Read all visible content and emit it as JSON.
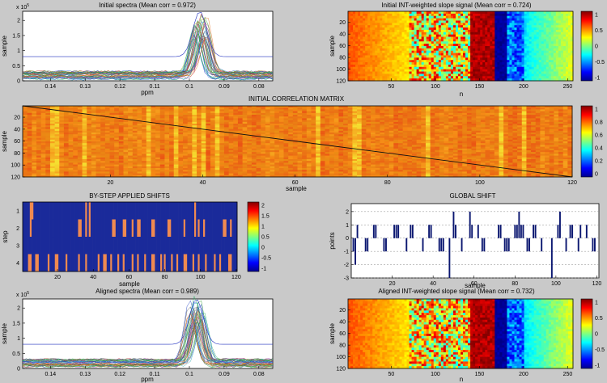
{
  "colorbar_labels": {
    "initial_slope": [
      "1",
      "0.5",
      "0",
      "-0.5",
      "-1"
    ],
    "correlation": [
      "1",
      "0.8",
      "0.6",
      "0.4",
      "0.2",
      "0"
    ],
    "shifts": [
      "2",
      "1.5",
      "1",
      "0.5",
      "0",
      "-0.5",
      "-1"
    ],
    "aligned_slope": [
      "1",
      "0.5",
      "0",
      "-0.5",
      "-1"
    ]
  },
  "chart_data": [
    {
      "id": "initial_spectra",
      "type": "line",
      "title": "Initial spectra (Mean corr = 0.972)",
      "xlabel": "ppm",
      "ylabel": "sample",
      "exponent_label": "x 10",
      "exponent_power": "5",
      "x_reversed": true,
      "xlim": [
        0.076,
        0.148
      ],
      "ylim": [
        0,
        230000
      ],
      "x_ticks": [
        "0.14",
        "0.13",
        "0.12",
        "0.11",
        "0.1",
        "0.09",
        "0.08"
      ],
      "y_ticks": [
        "0",
        "0.5",
        "1",
        "1.5",
        "2"
      ],
      "peak_center_ppm": 0.097,
      "peak_height": 200000,
      "baseline": 15000,
      "series_count": 120
    },
    {
      "id": "initial_slope",
      "type": "heatmap",
      "title": "Initial INT-weighted slope signal (Mean corr = 0.724)",
      "xlabel": "n",
      "ylabel": "sample",
      "xlim": [
        1,
        256
      ],
      "ylim": [
        1,
        120
      ],
      "x_ticks": [
        "50",
        "100",
        "150",
        "200",
        "250"
      ],
      "y_ticks": [
        "20",
        "40",
        "60",
        "80",
        "100",
        "120"
      ],
      "clim": [
        -1,
        1
      ]
    },
    {
      "id": "correlation_matrix",
      "type": "heatmap",
      "title": "INITIAL CORRELATION MATRIX",
      "xlabel": "sample",
      "ylabel": "sample",
      "xlim": [
        1,
        120
      ],
      "ylim": [
        1,
        120
      ],
      "x_ticks": [
        "20",
        "40",
        "60",
        "80",
        "100",
        "120"
      ],
      "y_ticks": [
        "20",
        "40",
        "60",
        "80",
        "100",
        "120"
      ],
      "clim": [
        0,
        1
      ]
    },
    {
      "id": "step_shifts",
      "type": "heatmap",
      "title": "BY-STEP APPLIED SHIFTS",
      "xlabel": "sample",
      "ylabel": "step",
      "xlim": [
        1,
        120
      ],
      "steps": 4,
      "x_ticks": [
        "20",
        "40",
        "60",
        "80",
        "100",
        "120"
      ],
      "y_ticks": [
        "1",
        "2",
        "3",
        "4"
      ],
      "clim": [
        -1,
        2
      ],
      "values": [
        [
          0,
          0,
          0,
          0,
          1,
          1,
          0,
          0,
          0,
          0,
          0,
          0,
          0,
          0,
          0,
          0,
          0,
          0,
          0,
          0,
          0,
          0,
          0,
          0,
          0,
          0,
          0,
          0,
          0,
          0,
          0,
          0,
          0,
          0,
          0,
          1,
          0,
          1,
          0,
          0,
          0,
          0,
          0,
          0,
          0,
          0,
          0,
          0,
          0,
          0,
          0,
          0,
          0,
          0,
          0,
          0,
          0,
          0,
          0,
          0,
          0,
          0,
          0,
          0,
          0,
          0,
          0,
          0,
          0,
          0,
          0,
          0,
          0,
          0,
          0,
          0,
          0,
          0,
          0,
          0,
          0,
          0,
          0,
          0,
          0,
          0,
          0,
          0,
          0,
          0,
          0,
          0,
          0,
          0,
          0,
          0,
          1,
          0,
          0,
          0,
          0,
          0,
          0,
          0,
          0,
          0,
          0,
          0,
          0,
          0,
          0,
          0,
          0,
          0,
          0,
          0,
          0,
          0,
          0,
          0
        ],
        [
          0,
          0,
          0,
          0,
          1,
          0,
          0,
          0,
          0,
          0,
          0,
          0,
          0,
          0,
          0,
          0,
          0,
          0,
          0,
          0,
          0,
          0,
          0,
          0,
          0,
          0,
          0,
          0,
          0,
          0,
          0,
          1,
          1,
          0,
          0,
          1,
          0,
          1,
          0,
          0,
          0,
          0,
          0,
          0,
          0,
          0,
          0,
          0,
          0,
          0,
          1,
          1,
          0,
          0,
          0,
          0,
          1,
          1,
          0,
          0,
          0,
          1,
          0,
          0,
          1,
          1,
          0,
          0,
          0,
          0,
          0,
          0,
          1,
          1,
          0,
          0,
          0,
          0,
          0,
          0,
          0,
          1,
          1,
          0,
          0,
          0,
          0,
          0,
          0,
          0,
          1,
          0,
          0,
          0,
          0,
          0,
          1,
          0,
          1,
          0,
          0,
          1,
          0,
          0,
          0,
          0,
          0,
          0,
          0,
          0,
          0,
          0,
          1,
          1,
          0,
          0,
          1,
          0,
          0,
          0
        ],
        [
          0,
          0,
          0,
          0,
          0,
          0,
          0,
          0,
          0,
          0,
          0,
          0,
          0,
          0,
          0,
          0,
          0,
          0,
          0,
          0,
          0,
          0,
          0,
          0,
          0,
          0,
          0,
          0,
          0,
          0,
          0,
          0,
          0,
          0,
          0,
          0,
          0,
          0,
          0,
          0,
          0,
          0,
          0,
          0,
          0,
          0,
          0,
          0,
          0,
          0,
          0,
          0,
          0,
          0,
          0,
          0,
          0,
          0,
          0,
          0,
          0,
          0,
          0,
          0,
          0,
          0,
          0,
          0,
          0,
          0,
          0,
          0,
          0,
          0,
          0,
          0,
          0,
          0,
          0,
          0,
          0,
          0,
          0,
          0,
          0,
          0,
          0,
          0,
          0,
          0,
          0,
          0,
          0,
          0,
          0,
          0,
          0,
          0,
          0,
          0,
          0,
          0,
          0,
          0,
          0,
          0,
          0,
          0,
          0,
          0,
          0,
          0,
          0,
          0,
          0,
          0,
          0,
          0,
          0,
          0
        ],
        [
          0,
          0,
          0,
          1,
          1,
          0,
          0,
          1,
          1,
          0,
          0,
          0,
          0,
          0,
          1,
          0,
          0,
          0,
          1,
          1,
          0,
          0,
          0,
          0,
          1,
          0,
          0,
          0,
          0,
          0,
          0,
          1,
          0,
          0,
          0,
          1,
          0,
          0,
          0,
          0,
          0,
          0,
          1,
          0,
          0,
          1,
          1,
          0,
          0,
          1,
          0,
          0,
          0,
          1,
          0,
          0,
          1,
          0,
          0,
          0,
          0,
          1,
          0,
          0,
          1,
          0,
          0,
          0,
          1,
          0,
          0,
          0,
          1,
          1,
          0,
          0,
          0,
          1,
          0,
          1,
          0,
          0,
          0,
          1,
          0,
          0,
          1,
          0,
          0,
          0,
          1,
          1,
          0,
          0,
          0,
          1,
          0,
          0,
          1,
          0,
          0,
          0,
          1,
          0,
          0,
          0,
          0,
          1,
          0,
          0,
          1,
          0,
          0,
          0,
          0,
          1,
          1,
          0,
          0,
          0
        ]
      ]
    },
    {
      "id": "global_shift",
      "type": "bar",
      "title": "GLOBAL SHIFT",
      "xlabel": "sample",
      "ylabel": "points",
      "xlim": [
        0,
        121
      ],
      "ylim": [
        -3,
        2.6
      ],
      "x_ticks": [
        "20",
        "40",
        "60",
        "80",
        "100",
        "120"
      ],
      "y_ticks": [
        "2",
        "1",
        "0",
        "-1",
        "-2",
        "-3"
      ],
      "values": [
        -1,
        -2,
        1,
        0,
        0,
        0,
        -1,
        -1,
        0,
        0,
        1,
        1,
        0,
        0,
        0,
        -1,
        -1,
        0,
        0,
        0,
        1,
        1,
        1,
        0,
        0,
        0,
        -1,
        0,
        1,
        1,
        0,
        0,
        0,
        0,
        -1,
        0,
        0,
        1,
        1,
        0,
        0,
        0,
        -1,
        -1,
        -1,
        0,
        0,
        -3,
        0,
        2,
        1,
        0,
        0,
        -1,
        0,
        0,
        0,
        2,
        1,
        0,
        0,
        1,
        0,
        -1,
        -1,
        0,
        0,
        0,
        0,
        0,
        0,
        1,
        1,
        0,
        -1,
        -1,
        -1,
        0,
        0,
        1,
        1,
        2,
        1,
        1,
        0,
        -1,
        -1,
        0,
        1,
        1,
        0,
        0,
        -1,
        0,
        0,
        0,
        0,
        -3,
        0,
        0,
        1,
        2,
        0,
        0,
        -1,
        0,
        1,
        1,
        0,
        0,
        -1,
        1,
        0,
        0,
        1,
        0,
        0,
        -1,
        -1,
        0
      ]
    },
    {
      "id": "aligned_spectra",
      "type": "line",
      "title": "Aligned spectra (Mean corr = 0.989)",
      "xlabel": "ppm",
      "ylabel": "sample",
      "exponent_label": "x 10",
      "exponent_power": "5",
      "x_reversed": true,
      "xlim": [
        0.076,
        0.148
      ],
      "ylim": [
        0,
        230000
      ],
      "x_ticks": [
        "0.14",
        "0.13",
        "0.12",
        "0.11",
        "0.1",
        "0.09",
        "0.08"
      ],
      "y_ticks": [
        "0",
        "0.5",
        "1",
        "1.5",
        "2"
      ],
      "peak_center_ppm": 0.098,
      "peak_height": 210000,
      "baseline": 15000,
      "series_count": 120
    },
    {
      "id": "aligned_slope",
      "type": "heatmap",
      "title": "Aligned INT-weighted slope signal (Mean corr = 0.732)",
      "xlabel": "n",
      "ylabel": "sample",
      "xlim": [
        1,
        256
      ],
      "ylim": [
        1,
        120
      ],
      "x_ticks": [
        "50",
        "100",
        "150",
        "200",
        "250"
      ],
      "y_ticks": [
        "20",
        "40",
        "60",
        "80",
        "100",
        "120"
      ],
      "clim": [
        -1,
        1
      ]
    }
  ]
}
